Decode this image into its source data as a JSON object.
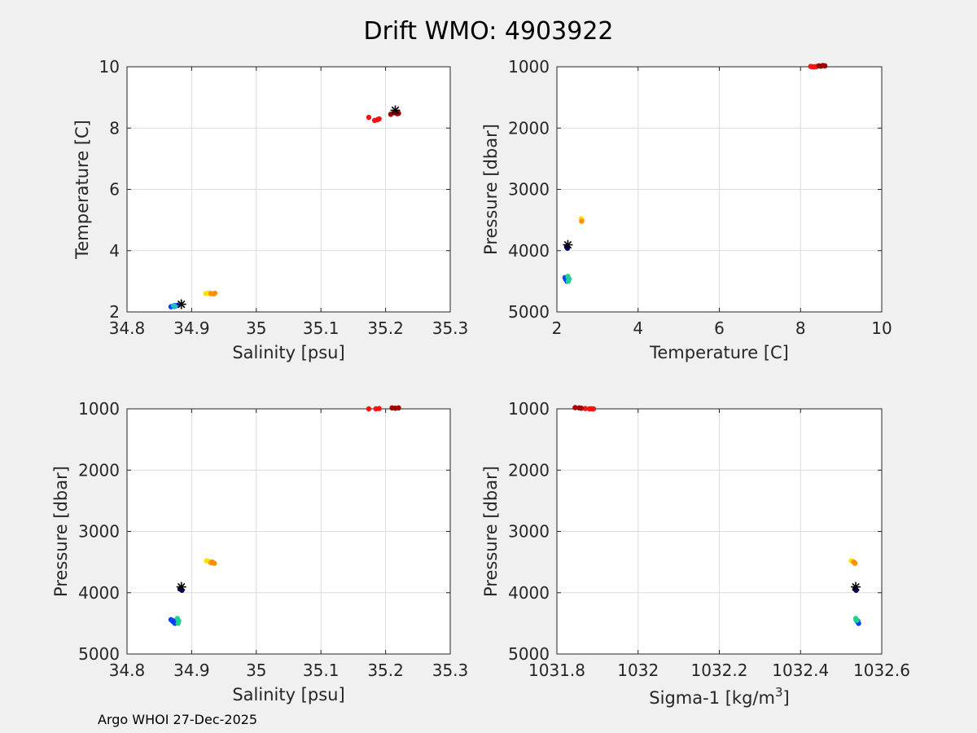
{
  "figure": {
    "title": "Drift WMO: 4903922",
    "footer": "Argo WHOI 27-Dec-2025"
  },
  "chart_data": [
    {
      "type": "scatter",
      "id": "ts",
      "xlabel": "Salinity [psu]",
      "ylabel": "Temperature [C]",
      "xlim": [
        34.8,
        35.3
      ],
      "ylim": [
        2,
        10
      ],
      "yreverse": false,
      "xticks": [
        34.8,
        34.9,
        35,
        35.1,
        35.2,
        35.3
      ],
      "xtick_labels": [
        "34.8",
        "34.9",
        "35",
        "35.1",
        "35.2",
        "35.3"
      ],
      "yticks": [
        2,
        4,
        6,
        8,
        10
      ],
      "ytick_labels": [
        "2",
        "4",
        "6",
        "8",
        "10"
      ],
      "grid": true,
      "series": [
        {
          "name": "deep-blue",
          "color": "#0040ff",
          "x": [
            34.868,
            34.871,
            34.873,
            34.876,
            34.879,
            34.874
          ],
          "y": [
            2.17,
            2.19,
            2.18,
            2.2,
            2.22,
            2.21
          ]
        },
        {
          "name": "cyan-green",
          "color": "#20c0c0",
          "x": [
            34.872,
            34.875
          ],
          "y": [
            2.2,
            2.19
          ]
        },
        {
          "name": "yellow",
          "color": "#ffe000",
          "x": [
            34.922,
            34.926,
            34.928
          ],
          "y": [
            2.6,
            2.62,
            2.61
          ]
        },
        {
          "name": "orange",
          "color": "#ff9000",
          "x": [
            34.93,
            34.934,
            34.936
          ],
          "y": [
            2.6,
            2.59,
            2.61
          ]
        },
        {
          "name": "red",
          "color": "#ff1010",
          "x": [
            35.174,
            35.183,
            35.19,
            35.187
          ],
          "y": [
            8.35,
            8.25,
            8.3,
            8.27
          ]
        },
        {
          "name": "dark-red",
          "color": "#a00000",
          "x": [
            35.208,
            35.213,
            35.218,
            35.22,
            35.215
          ],
          "y": [
            8.45,
            8.5,
            8.47,
            8.48,
            8.52
          ]
        }
      ],
      "markers": [
        {
          "name": "start",
          "color": "#000000",
          "x": 35.215,
          "y": 8.58
        },
        {
          "name": "end",
          "color": "#000000",
          "x": 34.884,
          "y": 2.25
        }
      ]
    },
    {
      "type": "scatter",
      "id": "tp",
      "xlabel": "Temperature [C]",
      "ylabel": "Pressure [dbar]",
      "xlim": [
        2,
        10
      ],
      "ylim": [
        1000,
        5000
      ],
      "yreverse": true,
      "xticks": [
        2,
        4,
        6,
        8,
        10
      ],
      "xtick_labels": [
        "2",
        "4",
        "6",
        "8",
        "10"
      ],
      "yticks": [
        1000,
        2000,
        3000,
        4000,
        5000
      ],
      "ytick_labels": [
        "1000",
        "2000",
        "3000",
        "4000",
        "5000"
      ],
      "grid": true,
      "series": [
        {
          "name": "deep-blue",
          "color": "#0040ff",
          "x": [
            2.2,
            2.22,
            2.25,
            2.21
          ],
          "y": [
            4440,
            4470,
            4500,
            4460
          ]
        },
        {
          "name": "cyan-green",
          "color": "#20d090",
          "x": [
            2.27,
            2.3,
            2.28
          ],
          "y": [
            4420,
            4460,
            4500
          ]
        },
        {
          "name": "navy",
          "color": "#00007f",
          "x": [
            2.24,
            2.26,
            2.25
          ],
          "y": [
            3940,
            3960,
            3930
          ]
        },
        {
          "name": "yellow",
          "color": "#ffe000",
          "x": [
            2.6,
            2.62
          ],
          "y": [
            3480,
            3500
          ]
        },
        {
          "name": "orange",
          "color": "#ff9000",
          "x": [
            2.61
          ],
          "y": [
            3520
          ]
        },
        {
          "name": "red",
          "color": "#ff1010",
          "x": [
            8.25,
            8.3,
            8.35,
            8.4
          ],
          "y": [
            995,
            1000,
            1000,
            995
          ]
        },
        {
          "name": "dark-red",
          "color": "#a00000",
          "x": [
            8.45,
            8.5,
            8.55,
            8.6
          ],
          "y": [
            985,
            990,
            980,
            985
          ]
        }
      ],
      "markers": [
        {
          "name": "end",
          "color": "#000000",
          "x": 2.27,
          "y": 3905
        }
      ]
    },
    {
      "type": "scatter",
      "id": "sp",
      "xlabel": "Salinity [psu]",
      "ylabel": "Pressure [dbar]",
      "xlim": [
        34.8,
        35.3
      ],
      "ylim": [
        1000,
        5000
      ],
      "yreverse": true,
      "xticks": [
        34.8,
        34.9,
        35,
        35.1,
        35.2,
        35.3
      ],
      "xtick_labels": [
        "34.8",
        "34.9",
        "35",
        "35.1",
        "35.2",
        "35.3"
      ],
      "yticks": [
        1000,
        2000,
        3000,
        4000,
        5000
      ],
      "ytick_labels": [
        "1000",
        "2000",
        "3000",
        "4000",
        "5000"
      ],
      "grid": true,
      "series": [
        {
          "name": "deep-blue",
          "color": "#0040ff",
          "x": [
            34.868,
            34.871,
            34.874,
            34.872
          ],
          "y": [
            4440,
            4470,
            4500,
            4460
          ]
        },
        {
          "name": "cyan-green",
          "color": "#20d090",
          "x": [
            34.878,
            34.88,
            34.879
          ],
          "y": [
            4420,
            4460,
            4500
          ]
        },
        {
          "name": "navy",
          "color": "#00007f",
          "x": [
            34.882,
            34.885,
            34.883
          ],
          "y": [
            3940,
            3960,
            3930
          ]
        },
        {
          "name": "yellow",
          "color": "#ffe000",
          "x": [
            34.923,
            34.927
          ],
          "y": [
            3480,
            3490
          ]
        },
        {
          "name": "orange",
          "color": "#ff9000",
          "x": [
            34.932,
            34.935,
            34.93
          ],
          "y": [
            3500,
            3520,
            3510
          ]
        },
        {
          "name": "red",
          "color": "#ff1010",
          "x": [
            35.174,
            35.185,
            35.19
          ],
          "y": [
            1000,
            1000,
            995
          ]
        },
        {
          "name": "dark-red",
          "color": "#a00000",
          "x": [
            35.21,
            35.215,
            35.22
          ],
          "y": [
            985,
            990,
            985
          ]
        }
      ],
      "markers": [
        {
          "name": "end",
          "color": "#000000",
          "x": 34.884,
          "y": 3905
        }
      ]
    },
    {
      "type": "scatter",
      "id": "sigp",
      "xlabel": "Sigma-1 [kg/m",
      "xlabel_sup": "3",
      "xlabel_end": "]",
      "ylabel": "Pressure [dbar]",
      "xlim": [
        1031.8,
        1032.6
      ],
      "ylim": [
        1000,
        5000
      ],
      "yreverse": true,
      "xticks": [
        1031.8,
        1032,
        1032.2,
        1032.4,
        1032.6
      ],
      "xtick_labels": [
        "1031.8",
        "1032",
        "1032.2",
        "1032.4",
        "1032.6"
      ],
      "yticks": [
        1000,
        2000,
        3000,
        4000,
        5000
      ],
      "ytick_labels": [
        "1000",
        "2000",
        "3000",
        "4000",
        "5000"
      ],
      "grid": true,
      "series": [
        {
          "name": "deep-blue",
          "color": "#0040ff",
          "x": [
            1032.537,
            1032.54,
            1032.543,
            1032.541
          ],
          "y": [
            4440,
            4470,
            4500,
            4460
          ]
        },
        {
          "name": "cyan-green",
          "color": "#20d090",
          "x": [
            1032.536,
            1032.539
          ],
          "y": [
            4420,
            4450
          ]
        },
        {
          "name": "navy",
          "color": "#00007f",
          "x": [
            1032.534,
            1032.537,
            1032.535
          ],
          "y": [
            3940,
            3960,
            3930
          ]
        },
        {
          "name": "yellow",
          "color": "#ffe000",
          "x": [
            1032.525,
            1032.528
          ],
          "y": [
            3480,
            3490
          ]
        },
        {
          "name": "orange",
          "color": "#ff9000",
          "x": [
            1032.531,
            1032.534,
            1032.533
          ],
          "y": [
            3500,
            3520,
            3510
          ]
        },
        {
          "name": "red",
          "color": "#ff1010",
          "x": [
            1031.87,
            1031.88,
            1031.89,
            1031.885
          ],
          "y": [
            995,
            1000,
            1000,
            997
          ]
        },
        {
          "name": "dark-red",
          "color": "#a00000",
          "x": [
            1031.845,
            1031.855,
            1031.86
          ],
          "y": [
            980,
            985,
            990
          ]
        }
      ],
      "markers": [
        {
          "name": "end",
          "color": "#000000",
          "x": 1032.536,
          "y": 3905
        }
      ]
    }
  ]
}
